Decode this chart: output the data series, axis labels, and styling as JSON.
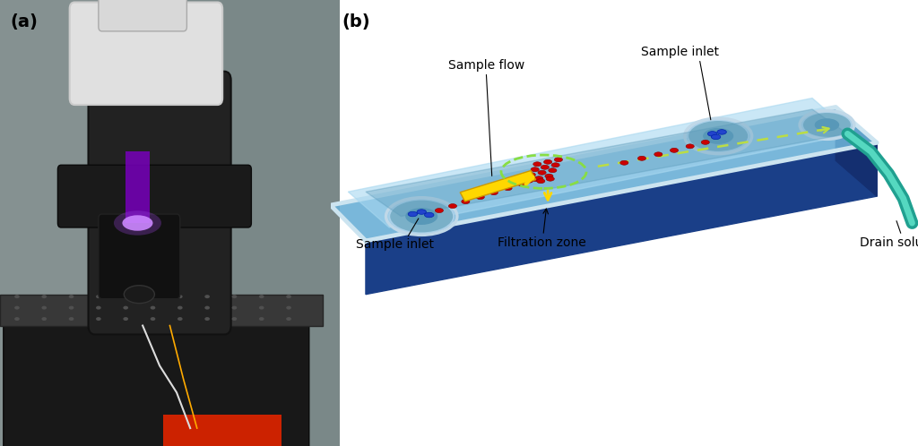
{
  "figure_width": 10.24,
  "figure_height": 4.98,
  "dpi": 100,
  "bg_color": "#ffffff",
  "panel_a_label": "(a)",
  "panel_b_label": "(b)",
  "label_fontsize": 14,
  "label_fontweight": "bold",
  "annotations": {
    "sample_inlet_top": "Sample inlet",
    "sample_flow": "Sample flow",
    "sample_inlet_bottom": "Sample inlet",
    "filtration_zone": "Filtration zone",
    "drain_solution": "Drain solution"
  },
  "annotation_fontsize": 10,
  "chip_top_color": "#6aafd6",
  "chip_front_color": "#1a3f88",
  "chip_right_color": "#142f70",
  "chip_inner_color": "#a8d8f0",
  "chip_border_color": "#d8ecf8",
  "well_outer_color": "#88b8cc",
  "well_inner_color": "#6aa8c8",
  "arrow_flow_color": "#ffd700",
  "arrow_drain_color": "#aadd66",
  "particle_color": "#cc0000",
  "blue_particle_color": "#2244cc",
  "dashed_circle_color": "#88dd44",
  "dashed_line_color": "#bbdd44",
  "drain_tube_outer": "#20a090",
  "drain_tube_inner": "#55d8c0",
  "microscope_bg": "#909898",
  "microscope_body": "#222222",
  "microscope_head": "#e0e0e0",
  "microscope_stage": "#383838",
  "microscope_base": "#181818",
  "microscope_purple": "#7700bb",
  "red_cable": "#cc2200"
}
